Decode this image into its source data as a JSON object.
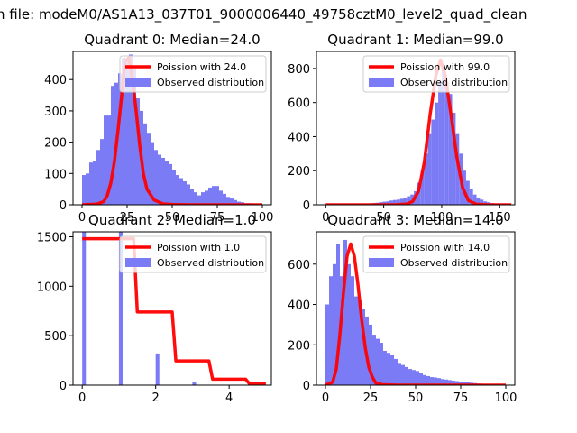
{
  "figure": {
    "suptitle": "n file: modeM0/AS1A13_037T01_9000006440_49758cztM0_level2_quad_clean"
  },
  "colors": {
    "hist": "#7b7bf5",
    "curve": "#ff0000",
    "axis": "#000000"
  },
  "chart_data": [
    {
      "type": "bar",
      "title": "Quadrant 0: Median=24.0",
      "xlim": [
        -5,
        105
      ],
      "ylim": [
        0,
        490
      ],
      "xticks": [
        0,
        25,
        50,
        75,
        100
      ],
      "yticks": [
        0,
        100,
        200,
        300,
        400
      ],
      "xtick_labels": [
        "0",
        "25",
        "50",
        "75",
        "100"
      ],
      "ytick_labels": [
        "0",
        "100",
        "200",
        "300",
        "400"
      ],
      "legend": {
        "placement": "top-right",
        "curve_label": "Poission with 24.0",
        "hist_label": "Observed distribution"
      },
      "hist": {
        "x": [
          0,
          2,
          4,
          6,
          8,
          10,
          12,
          14,
          16,
          18,
          20,
          22,
          24,
          26,
          28,
          30,
          32,
          34,
          36,
          38,
          40,
          42,
          44,
          46,
          48,
          50,
          52,
          54,
          56,
          58,
          60,
          62,
          64,
          66,
          68,
          70,
          72,
          74,
          76,
          78,
          80,
          82,
          84,
          86,
          88,
          90,
          92,
          94,
          96,
          98
        ],
        "width": 2,
        "values": [
          95,
          100,
          135,
          140,
          175,
          210,
          285,
          285,
          380,
          390,
          420,
          470,
          460,
          480,
          435,
          340,
          300,
          260,
          230,
          200,
          175,
          160,
          150,
          140,
          130,
          110,
          95,
          85,
          75,
          65,
          50,
          40,
          30,
          40,
          45,
          55,
          60,
          60,
          45,
          35,
          25,
          20,
          15,
          10,
          8,
          5,
          5,
          3,
          2,
          1
        ]
      },
      "curve": {
        "x": [
          0,
          8,
          12,
          14,
          16,
          18,
          20,
          22,
          24,
          26,
          28,
          30,
          32,
          34,
          36,
          40,
          45,
          50,
          60,
          80,
          100
        ],
        "y": [
          0,
          2,
          10,
          30,
          70,
          140,
          240,
          350,
          460,
          470,
          400,
          300,
          190,
          100,
          50,
          15,
          3,
          1,
          0,
          0,
          0
        ]
      }
    },
    {
      "type": "bar",
      "title": "Quadrant 1: Median=99.0",
      "xlim": [
        -8,
        163
      ],
      "ylim": [
        0,
        900
      ],
      "xticks": [
        0,
        50,
        100,
        150
      ],
      "yticks": [
        0,
        200,
        400,
        600,
        800
      ],
      "xtick_labels": [
        "0",
        "50",
        "100",
        "150"
      ],
      "ytick_labels": [
        "0",
        "200",
        "400",
        "600",
        "800"
      ],
      "legend": {
        "placement": "top-right",
        "curve_label": "Poission with 99.0",
        "hist_label": "Observed distribution"
      },
      "hist": {
        "x": [
          40,
          43,
          46,
          49,
          52,
          55,
          58,
          61,
          64,
          67,
          70,
          73,
          76,
          79,
          82,
          85,
          88,
          91,
          94,
          97,
          100,
          103,
          106,
          109,
          112,
          115,
          118,
          121,
          124,
          127,
          130,
          133,
          136,
          139,
          142,
          145,
          148,
          151,
          154
        ],
        "width": 3,
        "values": [
          10,
          12,
          15,
          18,
          20,
          25,
          28,
          30,
          35,
          40,
          50,
          60,
          80,
          130,
          200,
          300,
          420,
          500,
          600,
          720,
          800,
          720,
          650,
          540,
          420,
          300,
          200,
          140,
          90,
          60,
          40,
          30,
          20,
          15,
          10,
          8,
          5,
          5,
          3
        ]
      },
      "curve": {
        "x": [
          0,
          60,
          70,
          75,
          80,
          85,
          90,
          95,
          99,
          103,
          108,
          113,
          118,
          123,
          130,
          140,
          160
        ],
        "y": [
          0,
          0,
          5,
          20,
          80,
          250,
          530,
          760,
          850,
          760,
          530,
          280,
          100,
          25,
          3,
          0,
          0
        ]
      }
    },
    {
      "type": "bar",
      "title": "Quadrant 2: Median=1.0",
      "xlim": [
        -0.25,
        5.15
      ],
      "ylim": [
        0,
        1550
      ],
      "xticks": [
        0,
        2,
        4
      ],
      "yticks": [
        0,
        500,
        1000,
        1500
      ],
      "xtick_labels": [
        "0",
        "2",
        "4"
      ],
      "ytick_labels": [
        "0",
        "500",
        "1000",
        "1500"
      ],
      "legend": {
        "placement": "top-right",
        "curve_label": "Poission with 1.0",
        "hist_label": "Observed distribution"
      },
      "hist": {
        "x": [
          0,
          1,
          2,
          3
        ],
        "width": 0.1,
        "values": [
          1550,
          1550,
          320,
          30
        ]
      },
      "curve": {
        "x": [
          0,
          1.4,
          1.5,
          2.45,
          2.55,
          3.45,
          3.55,
          4.45,
          4.55,
          5
        ],
        "y": [
          1480,
          1480,
          740,
          740,
          245,
          245,
          60,
          60,
          15,
          15
        ]
      }
    },
    {
      "type": "bar",
      "title": "Quadrant 3: Median=14.0",
      "xlim": [
        -5,
        105
      ],
      "ylim": [
        0,
        760
      ],
      "xticks": [
        0,
        25,
        50,
        75,
        100
      ],
      "yticks": [
        0,
        200,
        400,
        600
      ],
      "xtick_labels": [
        "0",
        "25",
        "50",
        "75",
        "100"
      ],
      "ytick_labels": [
        "0",
        "200",
        "400",
        "600"
      ],
      "legend": {
        "placement": "top-right",
        "curve_label": "Poission with 14.0",
        "hist_label": "Observed distribution"
      },
      "hist": {
        "x": [
          0,
          2,
          4,
          6,
          8,
          10,
          12,
          14,
          16,
          18,
          20,
          22,
          24,
          26,
          28,
          30,
          32,
          34,
          36,
          38,
          40,
          42,
          44,
          46,
          48,
          50,
          52,
          54,
          56,
          58,
          60,
          62,
          64,
          66,
          68,
          70,
          72,
          74,
          76,
          78,
          80,
          82,
          84,
          86,
          88,
          90,
          92,
          94,
          96,
          98
        ],
        "width": 2,
        "values": [
          400,
          540,
          600,
          700,
          540,
          720,
          600,
          540,
          440,
          420,
          380,
          340,
          300,
          250,
          230,
          210,
          170,
          160,
          150,
          130,
          110,
          100,
          90,
          80,
          75,
          70,
          60,
          50,
          45,
          40,
          38,
          35,
          30,
          28,
          25,
          22,
          20,
          18,
          16,
          15,
          12,
          10,
          8,
          6,
          5,
          4,
          3,
          2,
          2,
          1
        ]
      },
      "curve": {
        "x": [
          0,
          4,
          6,
          8,
          10,
          12,
          14,
          16,
          18,
          20,
          22,
          24,
          26,
          28,
          32,
          40,
          60,
          100
        ],
        "y": [
          0,
          15,
          80,
          250,
          460,
          640,
          700,
          640,
          500,
          330,
          190,
          90,
          40,
          10,
          2,
          0,
          0,
          0
        ]
      }
    }
  ]
}
